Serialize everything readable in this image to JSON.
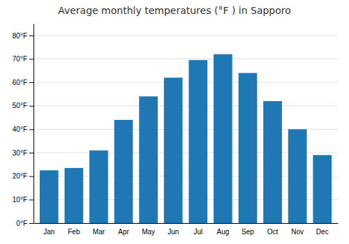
{
  "chart_data": {
    "type": "bar",
    "title": "Average monthly temperatures (°F ) in Sapporo",
    "categories": [
      "Jan",
      "Feb",
      "Mar",
      "Apr",
      "May",
      "Jun",
      "Jul",
      "Aug",
      "Sep",
      "Oct",
      "Nov",
      "Dec"
    ],
    "values": [
      22.5,
      23.5,
      31,
      44,
      54,
      62,
      69.5,
      72,
      64,
      52,
      40,
      29
    ],
    "ylim": [
      0,
      85
    ],
    "yticks": [
      {
        "value": 0,
        "label": "0°F"
      },
      {
        "value": 10,
        "label": "10°F"
      },
      {
        "value": 20,
        "label": "20°F"
      },
      {
        "value": 30,
        "label": "30°F"
      },
      {
        "value": 40,
        "label": "40°F"
      },
      {
        "value": 50,
        "label": "50°F"
      },
      {
        "value": 60,
        "label": "60°F"
      },
      {
        "value": 70,
        "label": "70°F"
      },
      {
        "value": 80,
        "label": "80°F"
      }
    ],
    "grid": true
  }
}
